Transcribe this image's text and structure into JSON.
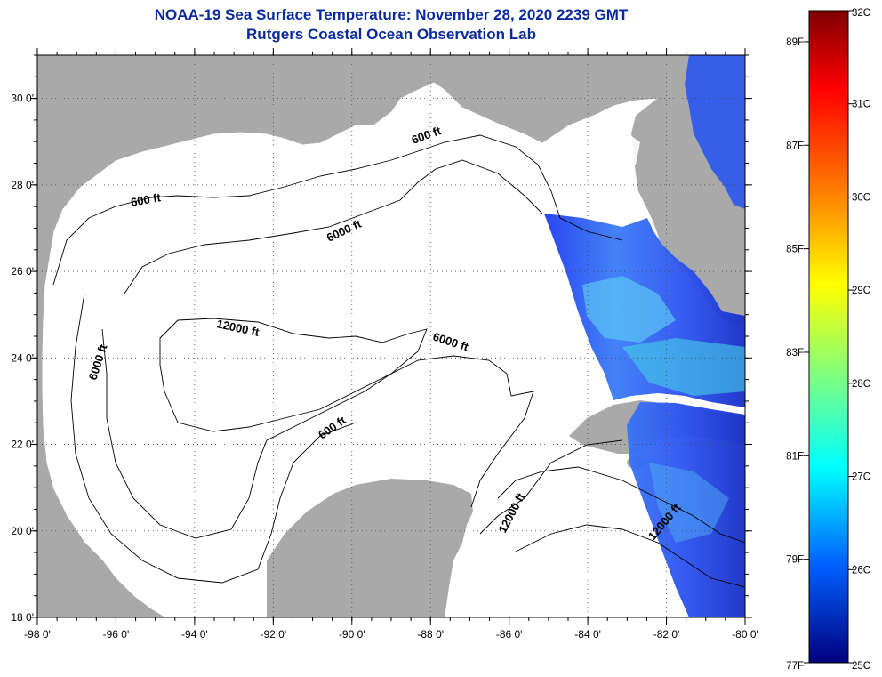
{
  "header": {
    "title": "NOAA-19 Sea Surface Temperature:  November 28, 2020 2239 GMT",
    "subtitle": "Rutgers Coastal Ocean Observation Lab"
  },
  "map": {
    "region": "Gulf of Mexico",
    "lon_range": [
      -98,
      -80
    ],
    "lat_range": [
      18,
      31
    ],
    "x_ticks": [
      "-98 0'",
      "-96 0'",
      "-94 0'",
      "-92 0'",
      "-90 0'",
      "-88 0'",
      "-86 0'",
      "-84 0'",
      "-82 0'",
      "-80 0'"
    ],
    "y_ticks": [
      "30 0'",
      "28 0'",
      "26 0'",
      "24 0'",
      "22 0'",
      "20 0'",
      "18 0'"
    ],
    "grid": "dotted",
    "land_color": "#a9a9a9",
    "ocean_no_data_color": "#ffffff",
    "contour_labels": [
      "600 ft",
      "600 ft",
      "6000 ft",
      "12000 ft",
      "6000 ft",
      "6000 ft",
      "600 ft",
      "12000 ft",
      "12000 ft"
    ]
  },
  "colorbar": {
    "placement": "right",
    "colors": [
      "#00007f",
      "#0000ff",
      "#007fff",
      "#00ffff",
      "#7fff7f",
      "#ffff00",
      "#ff7f00",
      "#ff0000",
      "#7f0000"
    ],
    "celsius_labels": [
      "32C",
      "31C",
      "30C",
      "29C",
      "28C",
      "27C",
      "26C",
      "25C"
    ],
    "fahrenheit_labels": [
      "89F",
      "87F",
      "85F",
      "83F",
      "81F",
      "79F",
      "77F"
    ]
  }
}
